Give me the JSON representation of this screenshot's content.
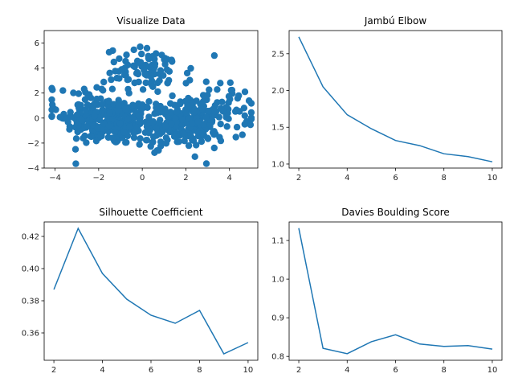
{
  "chart_data": [
    {
      "type": "scatter",
      "title": "Visualize Data",
      "xlim": [
        -4.5,
        5.3
      ],
      "ylim": [
        -4.0,
        7.0
      ],
      "xticks": [
        -4,
        -2,
        0,
        2,
        4
      ],
      "yticks": [
        -4,
        -2,
        0,
        2,
        4,
        6
      ],
      "color": "#1f77b4",
      "clusters": [
        {
          "center": [
            -1.5,
            -0.3
          ],
          "spread": [
            1.0,
            0.95
          ],
          "n": 230
        },
        {
          "center": [
            1.5,
            -0.5
          ],
          "spread": [
            1.0,
            0.9
          ],
          "n": 230
        },
        {
          "center": [
            0.3,
            3.8
          ],
          "spread": [
            1.0,
            0.9
          ],
          "n": 90
        },
        {
          "center": [
            3.4,
            0.6
          ],
          "spread": [
            0.9,
            1.1
          ],
          "n": 80
        },
        {
          "center": [
            -2.8,
            0.9
          ],
          "spread": [
            0.7,
            0.9
          ],
          "n": 50
        }
      ]
    },
    {
      "type": "line",
      "title": "Jambú Elbow",
      "x": [
        2,
        3,
        4,
        5,
        6,
        7,
        8,
        9,
        10
      ],
      "values": [
        2.73,
        2.05,
        1.67,
        1.48,
        1.32,
        1.25,
        1.14,
        1.1,
        1.03
      ],
      "xlim": [
        1.6,
        10.4
      ],
      "ylim": [
        0.945,
        2.815
      ],
      "xticks": [
        2,
        4,
        6,
        8,
        10
      ],
      "yticks": [
        1.0,
        1.5,
        2.0,
        2.5
      ],
      "ytick_labels": [
        "1.0",
        "1.5",
        "2.0",
        "2.5"
      ],
      "color": "#1f77b4"
    },
    {
      "type": "line",
      "title": "Silhouette Coefficient",
      "x": [
        2,
        3,
        4,
        5,
        6,
        7,
        8,
        9,
        10
      ],
      "values": [
        0.387,
        0.425,
        0.397,
        0.381,
        0.371,
        0.366,
        0.374,
        0.347,
        0.354
      ],
      "xlim": [
        1.6,
        10.4
      ],
      "ylim": [
        0.343,
        0.429
      ],
      "xticks": [
        2,
        4,
        6,
        8,
        10
      ],
      "yticks": [
        0.36,
        0.38,
        0.4,
        0.42
      ],
      "ytick_labels": [
        "0.36",
        "0.38",
        "0.40",
        "0.42"
      ],
      "color": "#1f77b4"
    },
    {
      "type": "line",
      "title": "Davies Boulding Score",
      "x": [
        2,
        3,
        4,
        5,
        6,
        7,
        8,
        9,
        10
      ],
      "values": [
        1.132,
        0.821,
        0.807,
        0.838,
        0.856,
        0.832,
        0.826,
        0.828,
        0.819
      ],
      "xlim": [
        1.6,
        10.4
      ],
      "ylim": [
        0.79,
        1.148
      ],
      "xticks": [
        2,
        4,
        6,
        8,
        10
      ],
      "yticks": [
        0.8,
        0.9,
        1.0,
        1.1
      ],
      "ytick_labels": [
        "0.8",
        "0.9",
        "1.0",
        "1.1"
      ],
      "color": "#1f77b4"
    }
  ]
}
